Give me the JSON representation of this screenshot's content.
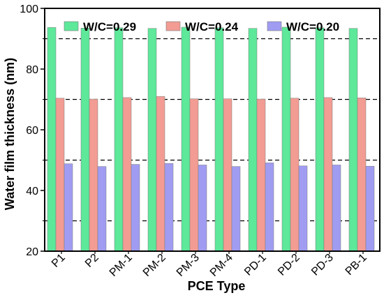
{
  "chart_data": {
    "type": "bar",
    "xlabel": "PCE Type",
    "ylabel": "Water film thickness (nm)",
    "ylim": [
      20,
      100
    ],
    "y_ticks": [
      20,
      40,
      60,
      80,
      100
    ],
    "reference_lines": [
      30,
      50,
      70,
      90
    ],
    "legend_position": "top",
    "categories": [
      "P1",
      "P2",
      "PM-1",
      "PM-2",
      "PM-3",
      "PM-4",
      "PD-1",
      "PD-2",
      "PD-3",
      "PB-1"
    ],
    "series": [
      {
        "name": "W/C=0.29",
        "color": "#5de89a",
        "values": [
          93.7,
          93.5,
          93.6,
          93.4,
          93.8,
          93.6,
          93.4,
          93.8,
          93.6,
          93.4
        ]
      },
      {
        "name": "W/C=0.24",
        "color": "#f29c93",
        "values": [
          70.4,
          70.1,
          70.6,
          71.0,
          70.2,
          70.2,
          70.1,
          70.4,
          70.6,
          70.5
        ]
      },
      {
        "name": "W/C=0.20",
        "color": "#a09cf2",
        "values": [
          48.8,
          47.9,
          48.6,
          48.9,
          48.4,
          47.9,
          49.1,
          48.1,
          48.4,
          48.0
        ]
      }
    ]
  }
}
